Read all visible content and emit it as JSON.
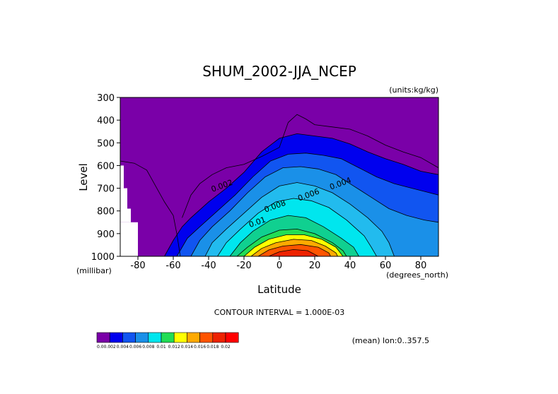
{
  "chart_data": {
    "type": "contour",
    "title": "SHUM_2002-JJA_NCEP",
    "units": "(units:kg/kg)",
    "xlabel": "Latitude",
    "ylabel": "Level",
    "x_unit": "(degrees_north)",
    "y_unit": "(millibar)",
    "xlim": [
      -90,
      90
    ],
    "ylim": [
      300,
      1000
    ],
    "x_ticks": [
      -80,
      -60,
      -40,
      -20,
      0,
      20,
      40,
      60,
      80
    ],
    "y_ticks": [
      300,
      400,
      500,
      600,
      700,
      800,
      900,
      1000
    ],
    "contour_interval": "CONTOUR INTERVAL = 1.000E-03",
    "mean_note": "(mean) lon:0..357.5",
    "contour_labels": [
      {
        "text": "0.002",
        "lat": -32,
        "level": 700
      },
      {
        "text": "0.004",
        "lat": 35,
        "level": 690
      },
      {
        "text": "0.006",
        "lat": 17,
        "level": 740
      },
      {
        "text": "0.008",
        "lat": -2,
        "level": 790
      },
      {
        "text": "0.01",
        "lat": -12,
        "level": 860
      }
    ],
    "levels": [
      {
        "value": 0.002,
        "color": "#0000ee",
        "pts": [
          [
            -65,
            1000
          ],
          [
            -60,
            930
          ],
          [
            -55,
            870
          ],
          [
            -50,
            830
          ],
          [
            -40,
            760
          ],
          [
            -30,
            700
          ],
          [
            -20,
            630
          ],
          [
            -10,
            540
          ],
          [
            0,
            480
          ],
          [
            10,
            460
          ],
          [
            20,
            470
          ],
          [
            30,
            480
          ],
          [
            40,
            505
          ],
          [
            50,
            540
          ],
          [
            60,
            570
          ],
          [
            70,
            595
          ],
          [
            80,
            625
          ],
          [
            90,
            640
          ],
          [
            90,
            1000
          ]
        ]
      },
      {
        "value": 0.003,
        "color": "#1155f0",
        "pts": [
          [
            -58,
            1000
          ],
          [
            -52,
            920
          ],
          [
            -45,
            870
          ],
          [
            -35,
            800
          ],
          [
            -25,
            730
          ],
          [
            -15,
            650
          ],
          [
            -5,
            580
          ],
          [
            5,
            550
          ],
          [
            15,
            545
          ],
          [
            25,
            555
          ],
          [
            35,
            570
          ],
          [
            45,
            610
          ],
          [
            55,
            650
          ],
          [
            65,
            680
          ],
          [
            75,
            700
          ],
          [
            85,
            720
          ],
          [
            90,
            730
          ],
          [
            90,
            1000
          ]
        ]
      },
      {
        "value": 0.004,
        "color": "#1a90e8",
        "pts": [
          [
            -50,
            1000
          ],
          [
            -45,
            930
          ],
          [
            -38,
            870
          ],
          [
            -28,
            800
          ],
          [
            -18,
            720
          ],
          [
            -8,
            650
          ],
          [
            2,
            610
          ],
          [
            12,
            605
          ],
          [
            22,
            615
          ],
          [
            32,
            640
          ],
          [
            42,
            690
          ],
          [
            52,
            740
          ],
          [
            62,
            790
          ],
          [
            72,
            820
          ],
          [
            82,
            840
          ],
          [
            90,
            850
          ],
          [
            90,
            1000
          ]
        ]
      },
      {
        "value": 0.005,
        "color": "#22bbee",
        "pts": [
          [
            -42,
            1000
          ],
          [
            -38,
            940
          ],
          [
            -30,
            880
          ],
          [
            -20,
            810
          ],
          [
            -10,
            740
          ],
          [
            0,
            690
          ],
          [
            10,
            675
          ],
          [
            20,
            690
          ],
          [
            30,
            720
          ],
          [
            40,
            770
          ],
          [
            50,
            830
          ],
          [
            58,
            890
          ],
          [
            62,
            940
          ],
          [
            65,
            1000
          ]
        ]
      },
      {
        "value": 0.006,
        "color": "#00e6ee",
        "pts": [
          [
            -35,
            1000
          ],
          [
            -30,
            940
          ],
          [
            -22,
            880
          ],
          [
            -12,
            810
          ],
          [
            -2,
            760
          ],
          [
            8,
            745
          ],
          [
            18,
            755
          ],
          [
            28,
            785
          ],
          [
            38,
            840
          ],
          [
            48,
            910
          ],
          [
            52,
            960
          ],
          [
            55,
            1000
          ]
        ]
      },
      {
        "value": 0.008,
        "color": "#10d090",
        "pts": [
          [
            -28,
            1000
          ],
          [
            -22,
            940
          ],
          [
            -15,
            890
          ],
          [
            -5,
            840
          ],
          [
            5,
            820
          ],
          [
            15,
            830
          ],
          [
            25,
            870
          ],
          [
            35,
            920
          ],
          [
            42,
            960
          ],
          [
            45,
            1000
          ]
        ]
      },
      {
        "value": 0.01,
        "color": "#22dd55",
        "pts": [
          [
            -24,
            1000
          ],
          [
            -18,
            960
          ],
          [
            -10,
            915
          ],
          [
            0,
            885
          ],
          [
            10,
            880
          ],
          [
            20,
            900
          ],
          [
            30,
            940
          ],
          [
            36,
            975
          ],
          [
            38,
            1000
          ]
        ]
      },
      {
        "value": 0.012,
        "color": "#ffff00",
        "pts": [
          [
            -20,
            1000
          ],
          [
            -14,
            960
          ],
          [
            -6,
            925
          ],
          [
            4,
            905
          ],
          [
            14,
            905
          ],
          [
            24,
            925
          ],
          [
            32,
            960
          ],
          [
            36,
            1000
          ]
        ]
      },
      {
        "value": 0.014,
        "color": "#ffaa00",
        "pts": [
          [
            -16,
            1000
          ],
          [
            -10,
            965
          ],
          [
            -2,
            940
          ],
          [
            8,
            925
          ],
          [
            18,
            930
          ],
          [
            26,
            955
          ],
          [
            32,
            985
          ],
          [
            33,
            1000
          ]
        ]
      },
      {
        "value": 0.016,
        "color": "#ff5500",
        "pts": [
          [
            -12,
            1000
          ],
          [
            -6,
            972
          ],
          [
            2,
            955
          ],
          [
            12,
            948
          ],
          [
            22,
            960
          ],
          [
            28,
            985
          ],
          [
            29,
            1000
          ]
        ]
      },
      {
        "value": 0.018,
        "color": "#ee2200",
        "pts": [
          [
            -6,
            1000
          ],
          [
            0,
            980
          ],
          [
            8,
            970
          ],
          [
            16,
            975
          ],
          [
            22,
            1000
          ]
        ]
      }
    ],
    "outer_line": [
      [
        -90,
        580
      ],
      [
        -82,
        590
      ],
      [
        -75,
        620
      ],
      [
        -70,
        690
      ],
      [
        -65,
        760
      ],
      [
        -60,
        820
      ],
      [
        -58,
        900
      ],
      [
        -56,
        1000
      ]
    ],
    "thin_line": [
      [
        -55,
        830
      ],
      [
        -50,
        730
      ],
      [
        -45,
        680
      ],
      [
        -38,
        640
      ],
      [
        -30,
        610
      ],
      [
        -20,
        595
      ],
      [
        -10,
        560
      ],
      [
        0,
        520
      ],
      [
        5,
        410
      ],
      [
        10,
        375
      ],
      [
        15,
        395
      ],
      [
        20,
        420
      ],
      [
        30,
        430
      ],
      [
        40,
        440
      ],
      [
        50,
        470
      ],
      [
        60,
        510
      ],
      [
        70,
        540
      ],
      [
        80,
        565
      ],
      [
        90,
        610
      ]
    ],
    "colorbar": {
      "colors": [
        "#7a00a8",
        "#0000ee",
        "#1155f0",
        "#1a90e8",
        "#00e6ee",
        "#22dd55",
        "#ffff00",
        "#ffaa00",
        "#ff5500",
        "#ee2200",
        "#ff0000"
      ],
      "labels": [
        "0.0",
        "0.002",
        "0.004",
        "0.006",
        "0.008",
        "0.01",
        "0.012",
        "0.014",
        "0.016",
        "0.018",
        "0.02"
      ]
    },
    "background_color": "#7a00a8"
  }
}
